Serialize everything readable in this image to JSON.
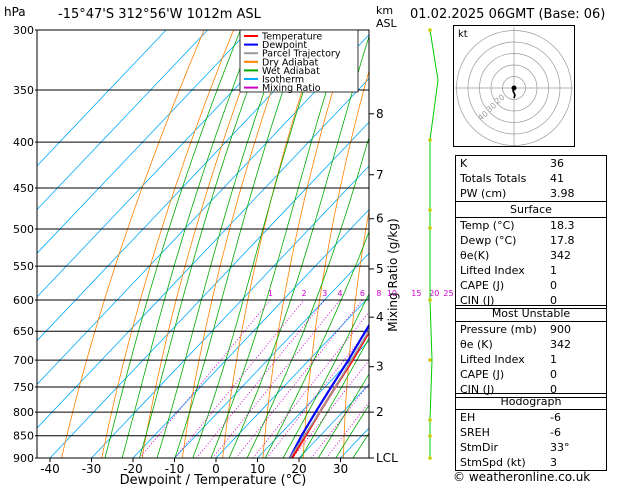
{
  "header": {
    "pressure_unit": "hPa",
    "location": "-15°47'S  312°56'W  1012m  ASL",
    "height_unit_1": "km",
    "height_unit_2": "ASL",
    "date": "01.02.2025  06GMT  (Base: 06)"
  },
  "legend": {
    "items": [
      {
        "label": "Temperature",
        "color": "#ff0000"
      },
      {
        "label": "Dewpoint",
        "color": "#0000ff"
      },
      {
        "label": "Parcel Trajectory",
        "color": "#999999"
      },
      {
        "label": "Dry Adiabat",
        "color": "#ff8000"
      },
      {
        "label": "Wet Adiabat",
        "color": "#00aa00"
      },
      {
        "label": "Isotherm",
        "color": "#00aaff"
      },
      {
        "label": "Mixing Ratio",
        "color": "#cc00cc"
      }
    ]
  },
  "chart_data": {
    "type": "line",
    "xlabel": "Dewpoint / Temperature (°C)",
    "ylabel": "hPa",
    "right_label": "Mixing Ratio (g/kg)",
    "x_ticks": [
      -40,
      -30,
      -20,
      -10,
      0,
      10,
      20,
      30
    ],
    "xlim": [
      -42,
      36
    ],
    "pressure_levels": [
      300,
      350,
      400,
      450,
      500,
      550,
      600,
      650,
      700,
      750,
      800,
      850,
      900
    ],
    "height_ticks": [
      {
        "label": "8",
        "p": 372
      },
      {
        "label": "7",
        "p": 435
      },
      {
        "label": "6",
        "p": 487
      },
      {
        "label": "5",
        "p": 554
      },
      {
        "label": "4",
        "p": 627
      },
      {
        "label": "3",
        "p": 712
      },
      {
        "label": "2",
        "p": 800
      },
      {
        "label": "LCL",
        "p": 900
      }
    ],
    "mixing_ratio_labels": [
      "1",
      "2",
      "3",
      "4",
      "6",
      "8",
      "10",
      "15",
      "20",
      "25"
    ],
    "mixing_ratio_values": [
      1,
      2,
      3,
      4,
      6,
      8,
      10,
      15,
      20,
      25
    ],
    "series": [
      {
        "name": "Temperature",
        "color": "#ff0000",
        "points": [
          [
            18.3,
            900
          ],
          [
            16.5,
            850
          ],
          [
            14.5,
            800
          ],
          [
            12.5,
            750
          ],
          [
            10.5,
            700
          ],
          [
            8,
            650
          ],
          [
            5,
            600
          ],
          [
            1.5,
            550
          ],
          [
            -2.5,
            500
          ],
          [
            -7.5,
            450
          ],
          [
            -14,
            400
          ],
          [
            -22,
            350
          ],
          [
            -31,
            300
          ]
        ]
      },
      {
        "name": "Dewpoint",
        "color": "#0000ff",
        "points": [
          [
            17.8,
            900
          ],
          [
            15.5,
            850
          ],
          [
            13.5,
            800
          ],
          [
            11.5,
            750
          ],
          [
            9.5,
            700
          ],
          [
            7,
            650
          ],
          [
            4.5,
            600
          ],
          [
            1,
            550
          ],
          [
            -3,
            500
          ],
          [
            -8.5,
            450
          ],
          [
            -15.5,
            400
          ],
          [
            -25,
            350
          ],
          [
            -42,
            300
          ]
        ]
      },
      {
        "name": "Parcel Trajectory",
        "color": "#999999",
        "points": [
          [
            17.8,
            900
          ],
          [
            16.2,
            850
          ],
          [
            14.5,
            800
          ],
          [
            12.5,
            750
          ],
          [
            10.2,
            700
          ],
          [
            7.8,
            650
          ],
          [
            4.8,
            600
          ],
          [
            1.2,
            550
          ],
          [
            -2.8,
            500
          ],
          [
            -8,
            450
          ],
          [
            -14.5,
            400
          ],
          [
            -22.5,
            350
          ],
          [
            -32,
            300
          ]
        ]
      }
    ]
  },
  "hodograph": {
    "label": "kt",
    "ring_labels": [
      "40",
      "30",
      "20"
    ]
  },
  "indices": {
    "rows": [
      {
        "label": "K",
        "value": "36"
      },
      {
        "label": "Totals Totals",
        "value": "41"
      },
      {
        "label": "PW (cm)",
        "value": "3.98"
      }
    ]
  },
  "surface": {
    "title": "Surface",
    "rows": [
      {
        "label": "Temp (°C)",
        "value": "18.3"
      },
      {
        "label": "Dewp (°C)",
        "value": "17.8"
      },
      {
        "label": "θe(K)",
        "value": "342"
      },
      {
        "label": "Lifted Index",
        "value": "1"
      },
      {
        "label": "CAPE (J)",
        "value": "0"
      },
      {
        "label": "CIN (J)",
        "value": "0"
      }
    ]
  },
  "most_unstable": {
    "title": "Most Unstable",
    "rows": [
      {
        "label": "Pressure (mb)",
        "value": "900"
      },
      {
        "label": "θe (K)",
        "value": "342"
      },
      {
        "label": "Lifted Index",
        "value": "1"
      },
      {
        "label": "CAPE (J)",
        "value": "0"
      },
      {
        "label": "CIN (J)",
        "value": "0"
      }
    ]
  },
  "hodo_table": {
    "title": "Hodograph",
    "rows": [
      {
        "label": "EH",
        "value": "-6"
      },
      {
        "label": "SREH",
        "value": "-6"
      },
      {
        "label": "StmDir",
        "value": "33°"
      },
      {
        "label": "StmSpd (kt)",
        "value": "3"
      }
    ]
  },
  "footer": {
    "copyright": "© weatheronline.co.uk"
  }
}
